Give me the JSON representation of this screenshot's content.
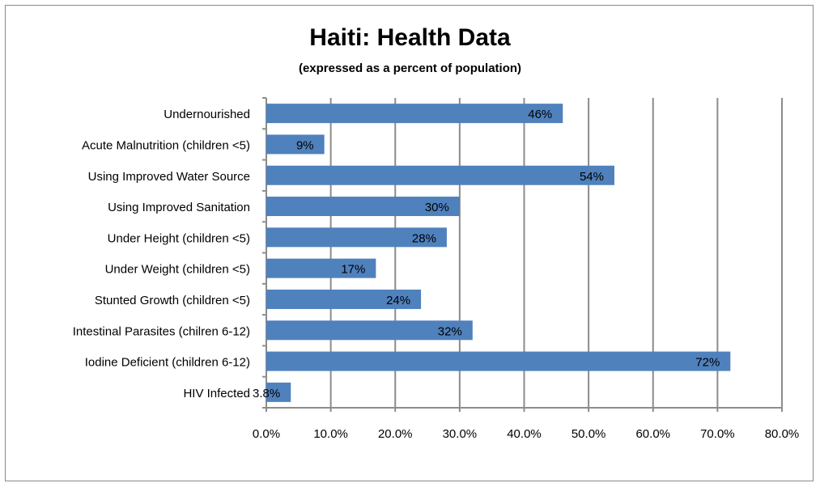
{
  "chart_data": {
    "type": "bar",
    "orientation": "horizontal",
    "title": "Haiti: Health Data",
    "subtitle": "(expressed as a percent of population)",
    "categories": [
      "Undernourished",
      "Acute Malnutrition (children <5)",
      "Using Improved Water Source",
      "Using Improved Sanitation",
      "Under Height (children <5)",
      "Under Weight (children <5)",
      "Stunted Growth (children <5)",
      "Intestinal Parasites (chilren 6-12)",
      "Iodine Deficient (children 6-12)",
      "HIV Infected"
    ],
    "values": [
      46,
      9,
      54,
      30,
      28,
      17,
      24,
      32,
      72,
      3.8
    ],
    "data_labels": [
      "46%",
      "9%",
      "54%",
      "30%",
      "28%",
      "17%",
      "24%",
      "32%",
      "72%",
      "3.8%"
    ],
    "xlim": [
      0,
      80
    ],
    "xticks": [
      0,
      10,
      20,
      30,
      40,
      50,
      60,
      70,
      80
    ],
    "xtick_labels": [
      "0.0%",
      "10.0%",
      "20.0%",
      "30.0%",
      "40.0%",
      "50.0%",
      "60.0%",
      "70.0%",
      "80.0%"
    ],
    "grid": "vertical",
    "legend": "none",
    "bar_color": "#4f81bd",
    "grid_color": "#8c8c8c"
  }
}
